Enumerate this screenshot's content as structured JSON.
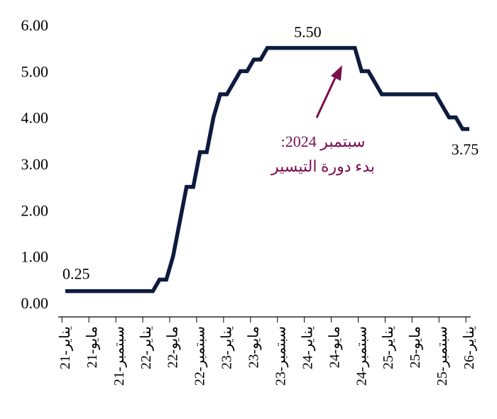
{
  "chart_data": {
    "type": "line",
    "x": [
      "2021-01",
      "2021-02",
      "2021-03",
      "2021-04",
      "2021-05",
      "2021-06",
      "2021-07",
      "2021-08",
      "2021-09",
      "2021-10",
      "2021-11",
      "2021-12",
      "2022-01",
      "2022-02",
      "2022-03",
      "2022-04",
      "2022-05",
      "2022-06",
      "2022-07",
      "2022-08",
      "2022-09",
      "2022-10",
      "2022-11",
      "2022-12",
      "2023-01",
      "2023-02",
      "2023-03",
      "2023-04",
      "2023-05",
      "2023-06",
      "2023-07",
      "2023-08",
      "2023-09",
      "2023-10",
      "2023-11",
      "2023-12",
      "2024-01",
      "2024-02",
      "2024-03",
      "2024-04",
      "2024-05",
      "2024-06",
      "2024-07",
      "2024-08",
      "2024-09",
      "2024-10",
      "2024-11",
      "2024-12",
      "2025-01",
      "2025-02",
      "2025-03",
      "2025-04",
      "2025-05",
      "2025-06",
      "2025-07",
      "2025-08",
      "2025-09",
      "2025-10",
      "2025-11",
      "2025-12",
      "2026-01"
    ],
    "series": [
      {
        "values": [
          0.25,
          0.25,
          0.25,
          0.25,
          0.25,
          0.25,
          0.25,
          0.25,
          0.25,
          0.25,
          0.25,
          0.25,
          0.25,
          0.25,
          0.5,
          0.5,
          1.0,
          1.75,
          2.5,
          2.5,
          3.25,
          3.25,
          4.0,
          4.5,
          4.5,
          4.75,
          5.0,
          5.0,
          5.25,
          5.25,
          5.5,
          5.5,
          5.5,
          5.5,
          5.5,
          5.5,
          5.5,
          5.5,
          5.5,
          5.5,
          5.5,
          5.5,
          5.5,
          5.5,
          5.0,
          5.0,
          4.75,
          4.5,
          4.5,
          4.5,
          4.5,
          4.5,
          4.5,
          4.5,
          4.5,
          4.5,
          4.25,
          4.0,
          4.0,
          3.75,
          3.75
        ],
        "color": "#0d1b3e"
      }
    ],
    "yticks": [
      "0.00",
      "1.00",
      "2.00",
      "3.00",
      "4.00",
      "5.00",
      "6.00"
    ],
    "ylim": [
      0,
      6
    ],
    "xticks": [
      "يناير-21",
      "مايو-21",
      "سبتمبر-21",
      "يناير-22",
      "مايو-22",
      "سبتمبر-22",
      "يناير-23",
      "مايو-23",
      "سبتمبر-23",
      "يناير-24",
      "مايو-24",
      "سبتمبر-24",
      "يناير-25",
      "مايو-25",
      "سبتمبر-25",
      "يناير-26"
    ],
    "data_labels": [
      {
        "text": "0.25",
        "index": 0
      },
      {
        "text": "5.50",
        "index": 36
      },
      {
        "text": "3.75",
        "index": 60
      }
    ],
    "annotation": {
      "lines": [
        "سبتمبر 2024:",
        "بدء دورة التيسير"
      ],
      "color": "#7b0d4e"
    },
    "grid": false
  }
}
